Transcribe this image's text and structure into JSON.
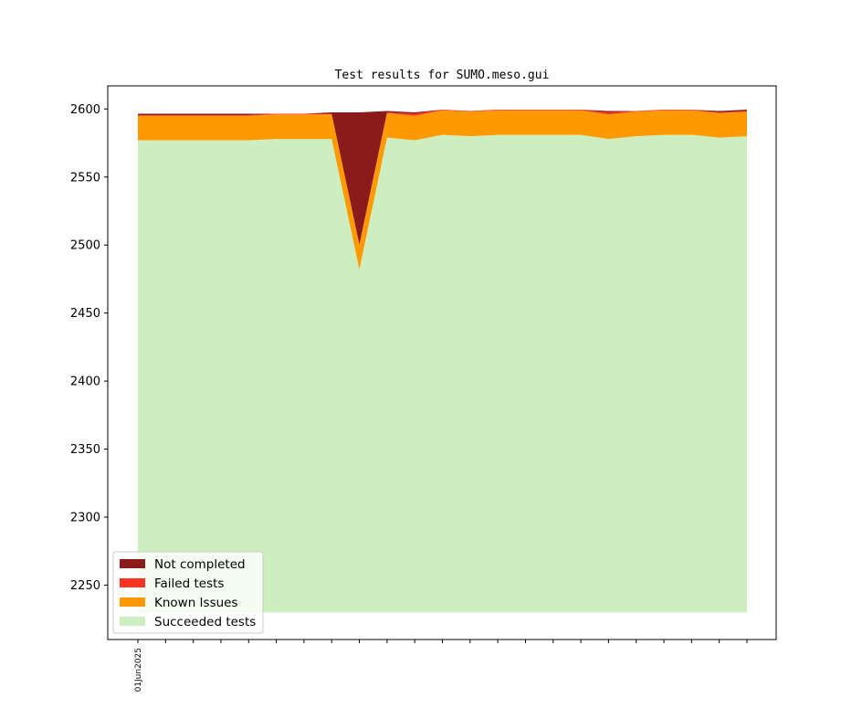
{
  "chart_data": {
    "type": "area",
    "title": "Test results for SUMO.meso.gui",
    "xlabel": "",
    "ylabel": "",
    "ylim": [
      2210,
      2617
    ],
    "yticks": [
      2250,
      2300,
      2350,
      2400,
      2450,
      2500,
      2550,
      2600
    ],
    "x_tick_labels": [
      "01Jun2025"
    ],
    "legend_position": "lower-left",
    "baseline": 2230,
    "x_count": 23,
    "series": [
      {
        "name": "Succeeded tests",
        "color": "#cdeebe",
        "values": [
          2577,
          2577,
          2577,
          2577,
          2577,
          2578,
          2578,
          2578,
          2482,
          2579,
          2577,
          2581,
          2580,
          2581,
          2581,
          2581,
          2581,
          2578,
          2580,
          2581,
          2581,
          2579,
          2580
        ]
      },
      {
        "name": "Known Issues",
        "color": "#ff9900",
        "values": [
          18,
          18,
          18,
          18,
          18,
          18,
          18,
          18,
          18,
          18,
          18,
          18,
          18,
          18,
          18,
          18,
          18,
          18,
          18,
          18,
          18,
          18,
          18
        ]
      },
      {
        "name": "Failed tests",
        "color": "#ff3322",
        "values": [
          0.5,
          0.5,
          0.5,
          0.5,
          0.5,
          0.5,
          0.5,
          0.5,
          0.5,
          0.5,
          1.5,
          0.5,
          0.5,
          0.5,
          0.5,
          0.5,
          0.5,
          1.5,
          0.5,
          0.5,
          0.5,
          0.5,
          0.5
        ]
      },
      {
        "name": "Not completed",
        "color": "#8b1a1a",
        "values": [
          1,
          1,
          1,
          1,
          1,
          0,
          0,
          1,
          97,
          1,
          1,
          0,
          0,
          0,
          0,
          0,
          0,
          1,
          0,
          0,
          0,
          1,
          1
        ]
      }
    ],
    "legend_order": [
      "Not completed",
      "Failed tests",
      "Known Issues",
      "Succeeded tests"
    ]
  }
}
